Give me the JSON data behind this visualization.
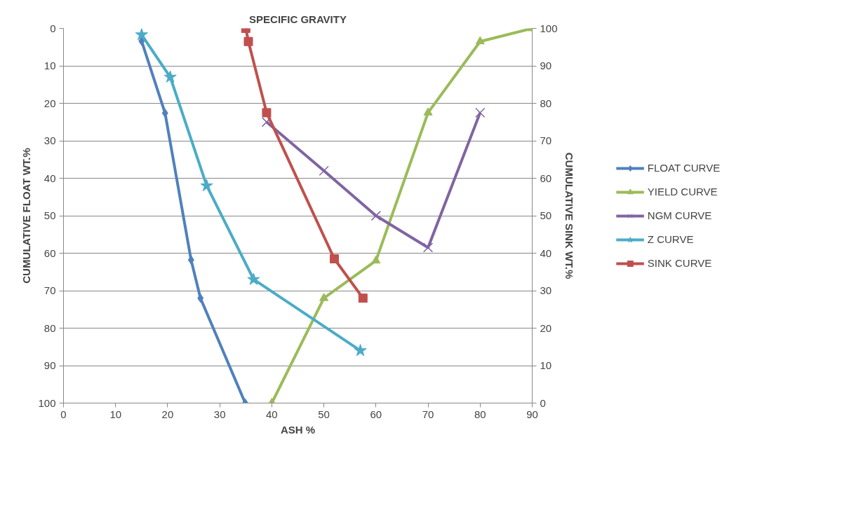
{
  "chart_data": {
    "type": "line",
    "title": "SPECIFIC GRAVITY",
    "xlabel": "ASH %",
    "ylabel": "CUMULATIVE FLOAT WT.%",
    "y2label": "CUMULATIVE SINK WT.%",
    "xlim": [
      0,
      90
    ],
    "xticks": [
      0,
      10,
      20,
      30,
      40,
      50,
      60,
      70,
      80,
      90
    ],
    "ylim": [
      100,
      0
    ],
    "yticks": [
      0,
      10,
      20,
      30,
      40,
      50,
      60,
      70,
      80,
      90,
      100
    ],
    "y2lim": [
      0,
      100
    ],
    "y2ticks": [
      0,
      10,
      20,
      30,
      40,
      50,
      60,
      70,
      80,
      90,
      100
    ],
    "grid": "y",
    "legend": "right",
    "series": [
      {
        "name": "FLOAT CURVE",
        "color": "#4f81bd",
        "marker": "diamond",
        "x": [
          15,
          19.5,
          24.5,
          26.3,
          34.9
        ],
        "values": [
          3.4,
          22.6,
          61.8,
          72,
          100
        ]
      },
      {
        "name": "YIELD CURVE",
        "color": "#9bbb59",
        "marker": "triangle",
        "x": [
          40,
          50,
          60,
          70,
          80,
          90
        ],
        "values": [
          100,
          72,
          62,
          22.5,
          3.5,
          0
        ]
      },
      {
        "name": "NGM CURVE",
        "color": "#8064a2",
        "marker": "cross",
        "x": [
          39,
          50,
          60,
          70,
          80
        ],
        "values": [
          25,
          38,
          50,
          58.5,
          22.5
        ]
      },
      {
        "name": "Z CURVE",
        "color": "#4bacc6",
        "marker": "star",
        "x": [
          15,
          20.5,
          27.5,
          36.5,
          57
        ],
        "values": [
          1.7,
          13,
          42,
          67,
          86
        ]
      },
      {
        "name": "SINK CURVE",
        "color": "#c0504d",
        "marker": "square",
        "x": [
          35,
          35.5,
          39,
          52,
          57.5
        ],
        "values": [
          0,
          3.5,
          22.5,
          61.5,
          72
        ]
      }
    ]
  }
}
